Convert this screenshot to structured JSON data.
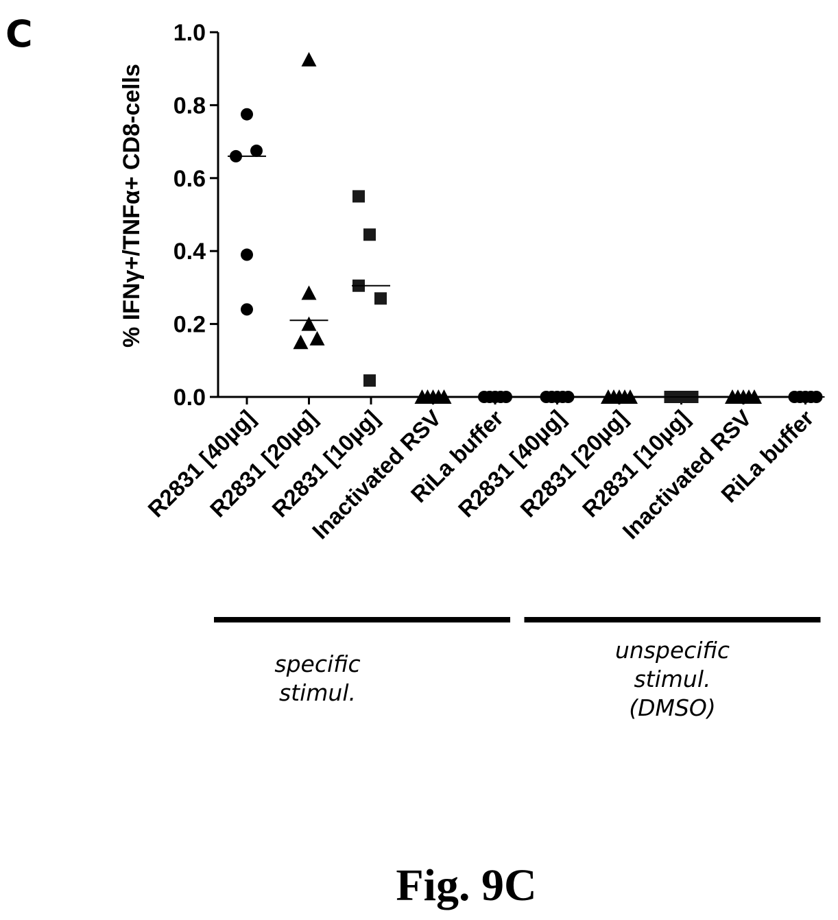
{
  "panel_letter": "C",
  "figure_caption": "Fig. 9C",
  "colors": {
    "ink": "#000000",
    "marker_square": "#1a1a1a"
  },
  "chart_data": {
    "type": "scatter",
    "title": "",
    "xlabel": "",
    "ylabel": "% IFNγ+/TNFα+ CD8-cells",
    "ylim": [
      0,
      1.0
    ],
    "yticks": [
      "0.0",
      "0.2",
      "0.4",
      "0.6",
      "0.8",
      "1.0"
    ],
    "grid": false,
    "categories": [
      "R2831 [40µg]",
      "R2831 [20µg]",
      "R2831 [10µg]",
      "Inactivated RSV",
      "RiLa buffer",
      "R2831 [40µg]",
      "R2831 [20µg]",
      "R2831 [10µg]",
      "Inactivated RSV",
      "RiLa buffer"
    ],
    "series": [
      {
        "category_index": 0,
        "marker": "circle",
        "values": [
          0.66,
          0.775,
          0.675,
          0.39,
          0.24
        ],
        "median": 0.66
      },
      {
        "category_index": 1,
        "marker": "triangle",
        "values": [
          0.925,
          0.285,
          0.2,
          0.15,
          0.16
        ],
        "median": 0.21
      },
      {
        "category_index": 2,
        "marker": "square",
        "values": [
          0.55,
          0.445,
          0.305,
          0.27,
          0.045
        ],
        "median": 0.305
      },
      {
        "category_index": 3,
        "marker": "triangle",
        "values": [
          0,
          0,
          0,
          0,
          0
        ],
        "median": 0
      },
      {
        "category_index": 4,
        "marker": "circle",
        "values": [
          0,
          0,
          0,
          0,
          0
        ],
        "median": 0
      },
      {
        "category_index": 5,
        "marker": "circle",
        "values": [
          0,
          0,
          0,
          0,
          0
        ],
        "median": 0
      },
      {
        "category_index": 6,
        "marker": "triangle",
        "values": [
          0,
          0,
          0,
          0,
          0
        ],
        "median": 0
      },
      {
        "category_index": 7,
        "marker": "square",
        "values": [
          0,
          0,
          0,
          0,
          0
        ],
        "median": 0
      },
      {
        "category_index": 8,
        "marker": "triangle",
        "values": [
          0,
          0,
          0,
          0,
          0
        ],
        "median": 0
      },
      {
        "category_index": 9,
        "marker": "circle",
        "values": [
          0,
          0,
          0,
          0,
          0
        ],
        "median": 0
      }
    ],
    "groups": [
      {
        "label_lines": [
          "specific",
          "stimul."
        ],
        "category_range": [
          0,
          4
        ]
      },
      {
        "label_lines": [
          "unspecific",
          "stimul.",
          "(DMSO)"
        ],
        "category_range": [
          5,
          9
        ]
      }
    ]
  }
}
